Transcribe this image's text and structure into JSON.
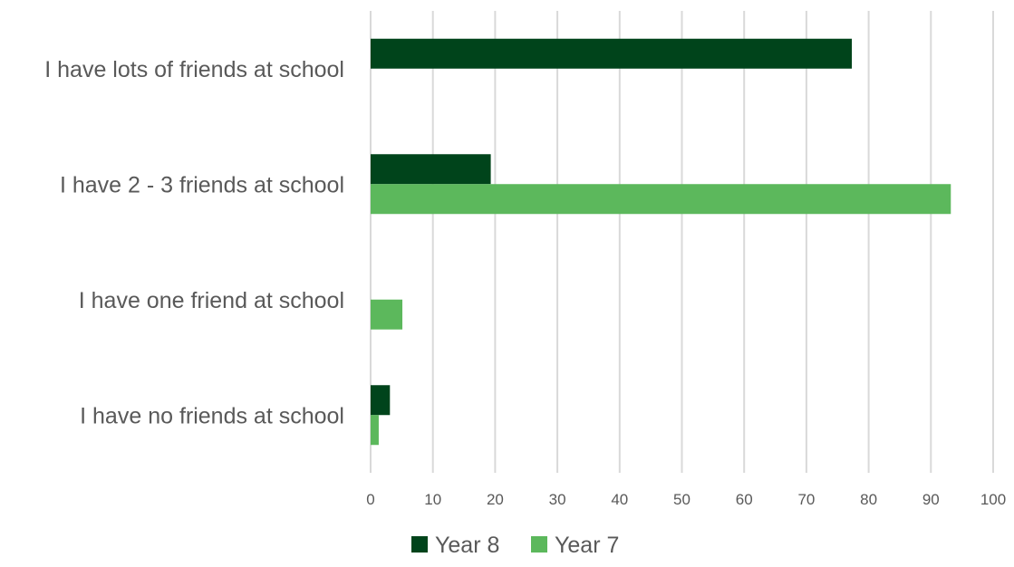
{
  "chart_data": {
    "type": "bar",
    "orientation": "horizontal",
    "categories": [
      "I have lots of friends at school",
      "I have 2 - 3 friends at school",
      "I have one friend at school",
      "I have no friends at school"
    ],
    "series": [
      {
        "name": "Year 8",
        "color": "#00441b",
        "values": [
          77.3,
          19.3,
          0,
          3.1
        ]
      },
      {
        "name": "Year 7",
        "color": "#5cb85c",
        "values": [
          0,
          93.2,
          5.1,
          1.3
        ]
      }
    ],
    "xlim": [
      0,
      100
    ],
    "x_ticks": [
      0,
      10,
      20,
      30,
      40,
      50,
      60,
      70,
      80,
      90,
      100
    ],
    "title": "",
    "xlabel": "",
    "ylabel": "",
    "grid": "vertical",
    "legend_position": "bottom"
  }
}
